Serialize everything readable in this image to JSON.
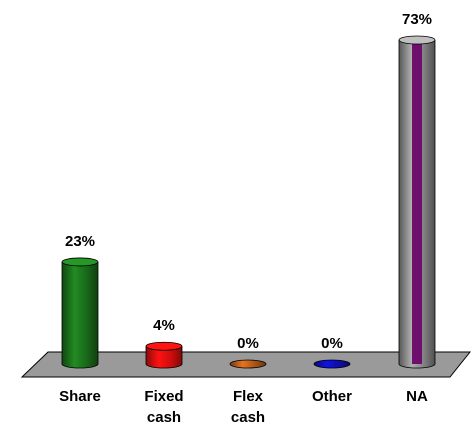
{
  "chart_data": {
    "type": "bar",
    "categories": [
      "Share",
      "Fixed cash",
      "Flex cash",
      "Other",
      "NA"
    ],
    "values": [
      23,
      4,
      0,
      0,
      73
    ],
    "value_labels": [
      "23%",
      "4%",
      "0%",
      "0%",
      "73%"
    ],
    "colors": [
      "#1f7f1f",
      "#ff1010",
      "#d2691e",
      "#1010d0",
      "#a0a0a0"
    ],
    "stripe_colors": [
      null,
      null,
      null,
      null,
      "#6e0f6e"
    ]
  }
}
